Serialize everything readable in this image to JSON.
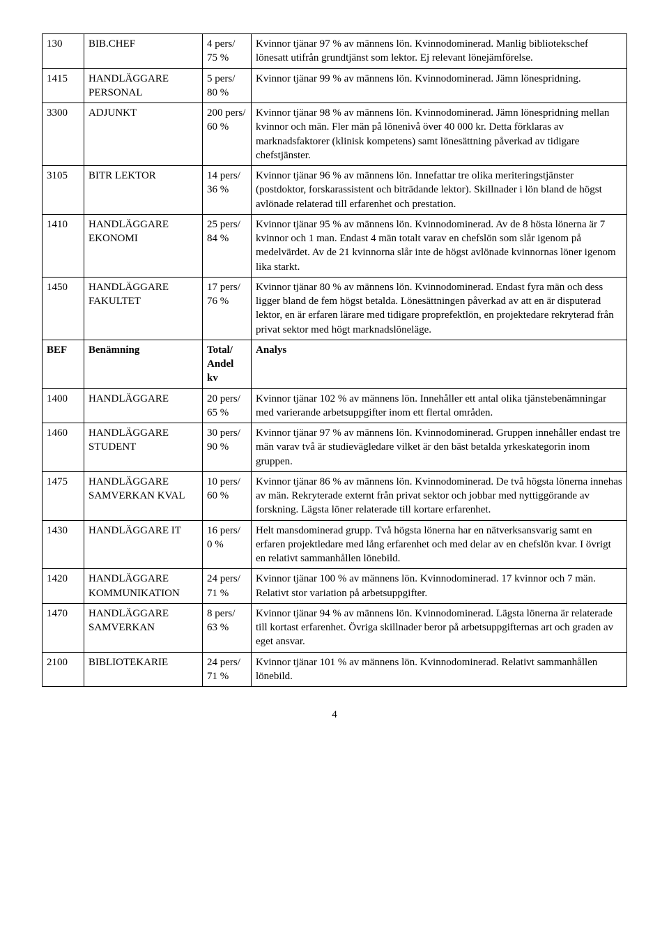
{
  "page_number": "4",
  "rows": [
    {
      "code": "130",
      "name": "BIB.CHEF",
      "stat": "4 pers/ 75 %",
      "analysis": "Kvinnor tjänar 97 % av männens lön. Kvinnodominerad. Manlig bibliotekschef lönesatt utifrån grundtjänst som lektor. Ej relevant lönejämförelse.",
      "bold": false
    },
    {
      "code": "1415",
      "name": "HANDLÄGGARE PERSONAL",
      "stat": "5 pers/ 80 %",
      "analysis": "Kvinnor tjänar 99 % av männens lön. Kvinnodominerad. Jämn lönespridning.",
      "bold": false
    },
    {
      "code": "3300",
      "name": "ADJUNKT",
      "stat": "200 pers/ 60 %",
      "analysis": "Kvinnor tjänar 98 % av männens lön. Kvinnodominerad. Jämn lönespridning mellan kvinnor och män. Fler män på lönenivå över 40 000 kr. Detta förklaras av marknadsfaktorer (klinisk kompetens) samt lönesättning påverkad av tidigare chefstjänster.",
      "bold": false
    },
    {
      "code": "3105",
      "name": "BITR LEKTOR",
      "stat": "14 pers/ 36 %",
      "analysis": "Kvinnor tjänar 96 % av männens lön. Innefattar tre olika meriteringstjänster (postdoktor, forskarassistent och biträdande lektor). Skillnader i lön bland de högst avlönade relaterad till erfarenhet och prestation.",
      "bold": false
    },
    {
      "code": "1410",
      "name": "HANDLÄGGARE EKONOMI",
      "stat": "25 pers/ 84 %",
      "analysis": "Kvinnor tjänar 95 % av männens lön. Kvinnodominerad. Av de 8 hösta lönerna är 7 kvinnor och 1 man. Endast 4 män totalt varav en chefslön som slår igenom på medelvärdet. Av de 21 kvinnorna slår inte de högst avlönade kvinnornas löner igenom lika starkt.",
      "bold": false
    },
    {
      "code": "1450",
      "name": "HANDLÄGGARE FAKULTET",
      "stat": "17 pers/ 76 %",
      "analysis": "Kvinnor tjänar 80 % av männens lön. Kvinnodominerad. Endast fyra män och dess ligger bland de fem högst betalda. Lönesättningen påverkad av att en är disputerad lektor, en är erfaren lärare med tidigare proprefektlön, en projektedare rekryterad från privat sektor med högt marknadslöneläge.",
      "bold": false
    },
    {
      "code": "BEF",
      "name": "Benämning",
      "stat": "Total/ Andel kv",
      "analysis": "Analys",
      "bold": true
    },
    {
      "code": "1400",
      "name": "HANDLÄGGARE",
      "stat": "20 pers/ 65 %",
      "analysis": "Kvinnor tjänar 102 % av männens lön. Innehåller ett antal olika tjänstebenämningar med varierande arbetsuppgifter inom ett flertal områden.",
      "bold": false
    },
    {
      "code": "1460",
      "name": "HANDLÄGGARE STUDENT",
      "stat": "30 pers/ 90 %",
      "analysis": "Kvinnor tjänar 97 % av männens lön. Kvinnodominerad. Gruppen innehåller endast tre män varav två är studievägledare vilket är den bäst betalda yrkeskategorin inom gruppen.",
      "bold": false
    },
    {
      "code": "1475",
      "name": "HANDLÄGGARE SAMVERKAN KVAL",
      "stat": "10 pers/ 60 %",
      "analysis": "Kvinnor tjänar 86 % av männens lön. Kvinnodominerad. De två högsta lönerna innehas av män. Rekryterade externt från privat sektor och jobbar med nyttiggörande av forskning. Lägsta löner relaterade till kortare erfarenhet.",
      "bold": false
    },
    {
      "code": "1430",
      "name": "HANDLÄGGARE IT",
      "stat": "16 pers/ 0 %",
      "analysis": "Helt mansdominerad grupp. Två högsta lönerna har en nätverksansvarig samt en erfaren projektledare med lång erfarenhet och med delar av en chefslön kvar. I övrigt en relativt sammanhållen lönebild.",
      "bold": false
    },
    {
      "code": "1420",
      "name": "HANDLÄGGARE KOMMUNIKATION",
      "stat": "24 pers/ 71 %",
      "analysis": "Kvinnor tjänar 100 % av männens lön. Kvinnodominerad. 17 kvinnor och 7 män. Relativt stor variation på arbetsuppgifter.",
      "bold": false
    },
    {
      "code": "1470",
      "name": "HANDLÄGGARE SAMVERKAN",
      "stat": "8 pers/ 63 %",
      "analysis": "Kvinnor tjänar 94 % av männens lön. Kvinnodominerad. Lägsta lönerna är relaterade till kortast erfarenhet. Övriga skillnader beror på arbetsuppgifternas art och graden av eget ansvar.",
      "bold": false
    },
    {
      "code": "2100",
      "name": "BIBLIOTEKARIE",
      "stat": "24 pers/ 71 %",
      "analysis": "Kvinnor tjänar 101 % av männens lön. Kvinnodominerad. Relativt sammanhållen lönebild.",
      "bold": false
    }
  ]
}
